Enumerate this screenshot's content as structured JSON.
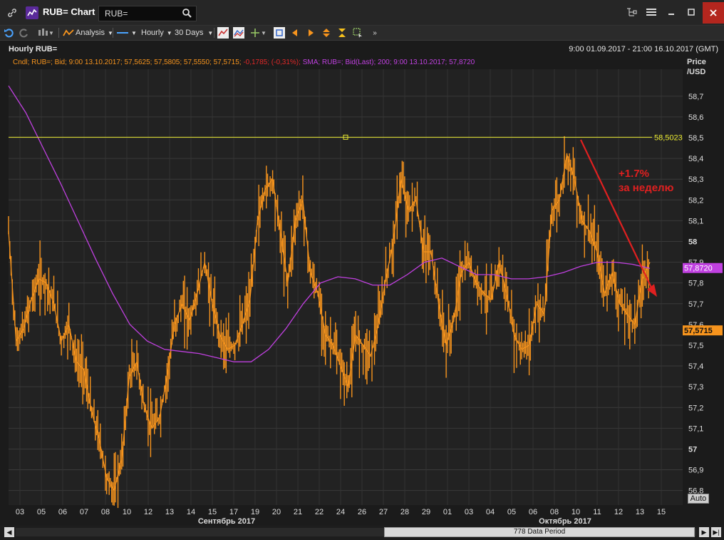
{
  "window": {
    "title": "RUB= Chart",
    "search_value": "RUB="
  },
  "toolbar": {
    "analysis_label": "Analysis",
    "interval_label": "Hourly",
    "period_label": "30 Days"
  },
  "chart_header": {
    "name": "Hourly RUB=",
    "range": "9:00 01.09.2017 - 21:00 16.10.2017 (GMT)"
  },
  "legend": {
    "cndl_part": "Cndl; RUB=; Bid; 9:00 13.10.2017; 57,5625; 57,5805; 57,5550; 57,5715;",
    "change_part": "-0,1785; (-0,31%);",
    "sma_part": "SMA; RUB=; Bid(Last); 200; 9:00 13.10.2017; 57,8720"
  },
  "axis": {
    "price_label_line1": "Price",
    "price_label_line2": "/USD",
    "auto_label": "Auto"
  },
  "footer": {
    "data_period": "778 Data Period"
  },
  "colors": {
    "candles": "#f7941d",
    "sma": "#c040e0",
    "hline": "#e8e830",
    "arrow": "#e02020",
    "change_red": "#e02828"
  },
  "icons": [
    "link-icon",
    "chart-icon",
    "search-icon",
    "tree-icon",
    "menu-icon",
    "minimize-icon",
    "maximize-icon",
    "close-icon",
    "undo-icon",
    "redo-icon",
    "candles-icon"
  ],
  "chart_data": {
    "type": "line",
    "title": "Hourly RUB=",
    "ylabel": "Price /USD",
    "ylim": [
      56.73,
      58.83
    ],
    "y_ticks": [
      "58,7",
      "58,6",
      "58,5",
      "58,4",
      "58,3",
      "58,2",
      "58,1",
      "58",
      "57,9",
      "57,8",
      "57,7",
      "57,6",
      "57,5",
      "57,4",
      "57,3",
      "57,2",
      "57,1",
      "57",
      "56,9",
      "56,8"
    ],
    "y_tick_values": [
      58.7,
      58.6,
      58.5,
      58.4,
      58.3,
      58.2,
      58.1,
      58.0,
      57.9,
      57.8,
      57.7,
      57.6,
      57.5,
      57.4,
      57.3,
      57.2,
      57.1,
      57.0,
      56.9,
      56.8
    ],
    "x_ticks": [
      "03",
      "05",
      "06",
      "07",
      "08",
      "10",
      "12",
      "13",
      "14",
      "15",
      "17",
      "19",
      "20",
      "21",
      "22",
      "24",
      "26",
      "27",
      "28",
      "29",
      "01",
      "03",
      "04",
      "05",
      "06",
      "08",
      "10",
      "11",
      "12",
      "13",
      "15"
    ],
    "month_labels": [
      "Сентябрь 2017",
      "Октябрь 2017"
    ],
    "series": [
      {
        "name": "Cndl; RUB=; Bid",
        "kind": "candles",
        "values": [
          58.05,
          57.52,
          57.58,
          57.72,
          57.82,
          57.8,
          57.7,
          57.52,
          57.6,
          57.42,
          57.38,
          57.18,
          57.05,
          56.86,
          56.8,
          56.95,
          57.35,
          57.42,
          57.2,
          57.1,
          57.15,
          57.35,
          57.6,
          57.7,
          57.62,
          57.75,
          57.9,
          57.7,
          57.55,
          57.48,
          57.5,
          57.6,
          57.72,
          58.1,
          58.25,
          58.3,
          58.05,
          57.8,
          58.1,
          58.2,
          57.85,
          57.75,
          57.55,
          57.5,
          57.4,
          57.3,
          57.55,
          57.5,
          57.45,
          57.6,
          57.82,
          58.0,
          58.3,
          58.15,
          58.2,
          57.95,
          57.95,
          57.7,
          57.5,
          57.62,
          57.85,
          57.9,
          57.8,
          57.75,
          57.72,
          57.9,
          57.75,
          57.55,
          57.48,
          57.5,
          57.7,
          57.65,
          58.15,
          58.2,
          58.42,
          58.3,
          58.1,
          58.05,
          57.95,
          57.75,
          57.85,
          57.7,
          57.65,
          57.6,
          57.82,
          57.9
        ],
        "low": 56.77,
        "high": 58.57,
        "last": "57,5715"
      },
      {
        "name": "SMA; RUB=; Bid(Last); 200",
        "kind": "line",
        "values": [
          58.75,
          58.62,
          58.45,
          58.28,
          58.1,
          57.92,
          57.75,
          57.6,
          57.52,
          57.48,
          57.47,
          57.46,
          57.44,
          57.42,
          57.42,
          57.48,
          57.58,
          57.7,
          57.8,
          57.83,
          57.82,
          57.79,
          57.79,
          57.84,
          57.9,
          57.92,
          57.88,
          57.84,
          57.84,
          57.82,
          57.82,
          57.83,
          57.85,
          57.88,
          57.9,
          57.9,
          57.89,
          57.87
        ],
        "last": "57,8720"
      }
    ],
    "horizontal_line": {
      "value": 58.5023,
      "label": "58,5023"
    },
    "annotations": [
      {
        "text_line1": "+1.7%",
        "text_line2": "за неделю",
        "arrow_from": [
          58.49,
          "10"
        ],
        "arrow_to": [
          57.74,
          "13"
        ]
      }
    ],
    "grid": true,
    "legend_position": "top-left"
  }
}
